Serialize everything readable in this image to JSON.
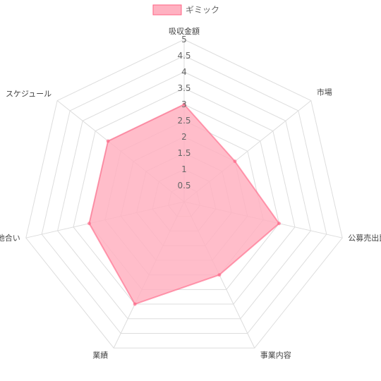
{
  "chart_data": {
    "type": "radar",
    "title": "",
    "categories": [
      "吸収金額",
      "市場",
      "公募売出比",
      "事業内容",
      "業績",
      "地合い",
      "スケジュール"
    ],
    "series": [
      {
        "name": "ギミック",
        "values": [
          3,
          2,
          3,
          2.5,
          3.5,
          3,
          3
        ]
      }
    ],
    "rlim": [
      0,
      5
    ],
    "ticks": [
      "0.5",
      "1",
      "1.5",
      "2",
      "2.5",
      "3",
      "3.5",
      "4",
      "4.5",
      "5"
    ],
    "grid": true,
    "legend": "top",
    "colors": {
      "fill": "#ffb1c1",
      "line": "#ff6384",
      "grid": "#dddddd",
      "text": "#666666"
    }
  }
}
